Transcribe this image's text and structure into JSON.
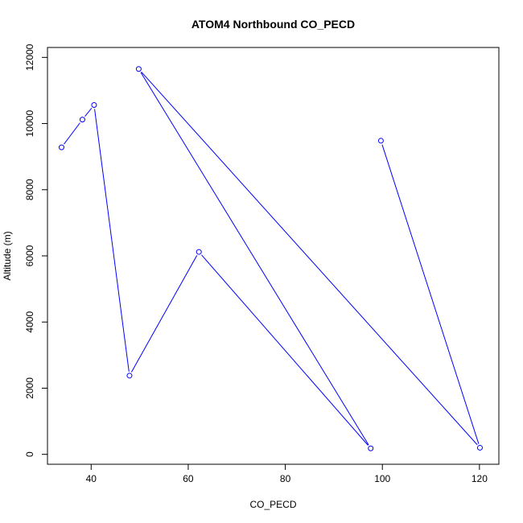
{
  "chart_data": {
    "type": "line",
    "title": "ATOM4 Northbound CO_PECD",
    "xlabel": "CO_PECD",
    "ylabel": "Altitude (m)",
    "xlim": [
      31,
      124
    ],
    "ylim": [
      -300,
      12300
    ],
    "xticks": [
      40,
      60,
      80,
      100,
      120
    ],
    "yticks": [
      0,
      2000,
      4000,
      6000,
      8000,
      10000,
      12000
    ],
    "grid": false,
    "series": [
      {
        "color": "#0000ff",
        "marker": "open-circle",
        "points": [
          {
            "x": 33.9,
            "y": 9280
          },
          {
            "x": 38.2,
            "y": 10120
          },
          {
            "x": 40.6,
            "y": 10560
          },
          {
            "x": 47.9,
            "y": 2380
          },
          {
            "x": 62.2,
            "y": 6120
          },
          {
            "x": 97.6,
            "y": 180
          },
          {
            "x": 49.8,
            "y": 11650
          },
          {
            "x": 120.1,
            "y": 200
          },
          {
            "x": 99.7,
            "y": 9480
          }
        ]
      }
    ]
  }
}
